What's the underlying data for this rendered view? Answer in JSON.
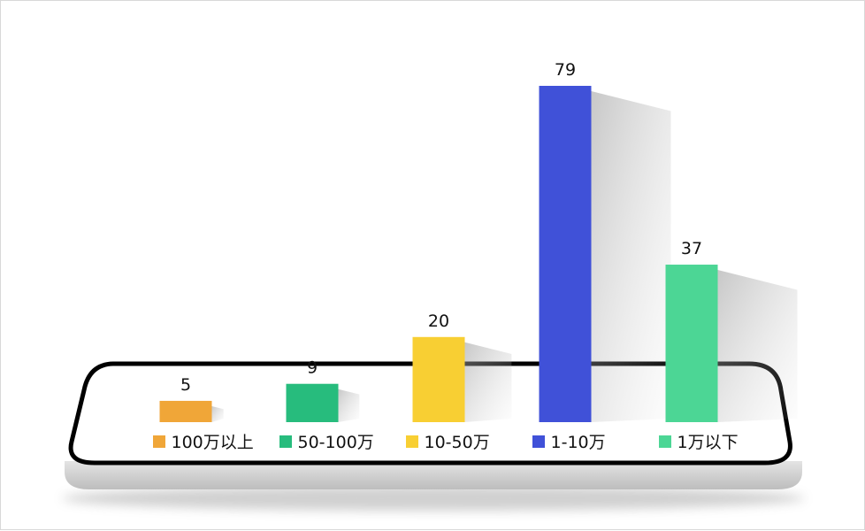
{
  "chart_data": {
    "type": "bar",
    "title": "",
    "xlabel": "",
    "ylabel": "",
    "ylim": [
      0,
      79
    ],
    "grid": false,
    "legend_position": "bottom",
    "categories": [
      "100万以上",
      "50-100万",
      "10-50万",
      "1-10万",
      "1万以下"
    ],
    "values": [
      5,
      9,
      20,
      79,
      37
    ],
    "colors": [
      "#F0A638",
      "#27BC7D",
      "#F8CF33",
      "#4051D8",
      "#4CD695"
    ]
  }
}
